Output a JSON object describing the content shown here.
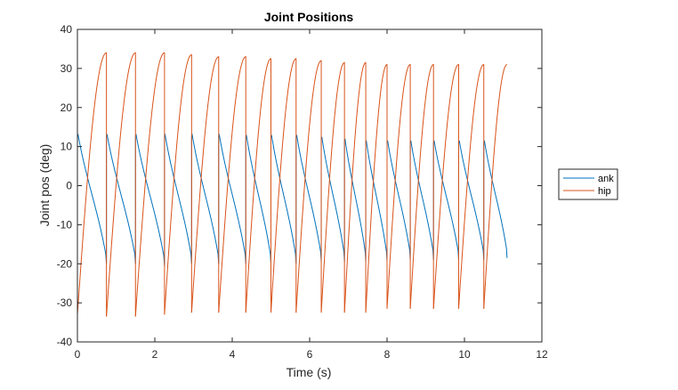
{
  "chart_data": {
    "type": "line",
    "title": "Joint Positions",
    "xlabel": "Time (s)",
    "ylabel": "Joint pos (deg)",
    "xlim": [
      0,
      12
    ],
    "ylim": [
      -40,
      40
    ],
    "xticks": [
      "0",
      "2",
      "4",
      "6",
      "8",
      "10",
      "12"
    ],
    "yticks": [
      "-40",
      "-30",
      "-20",
      "-10",
      "0",
      "10",
      "20",
      "30",
      "40"
    ],
    "grid": false,
    "legend_position": "outside-right",
    "series": [
      {
        "name": "ank",
        "color": "#0072BD",
        "cycles": [
          {
            "t_start": 0.0,
            "t_end": 0.75,
            "y_start": 12.5,
            "y_end": -20
          },
          {
            "t_start": 0.75,
            "t_end": 1.5,
            "y_start": 12.5,
            "y_end": -20
          },
          {
            "t_start": 1.5,
            "t_end": 2.25,
            "y_start": 12.5,
            "y_end": -20.5
          },
          {
            "t_start": 2.25,
            "t_end": 2.95,
            "y_start": 12.5,
            "y_end": -20
          },
          {
            "t_start": 2.95,
            "t_end": 3.65,
            "y_start": 12.5,
            "y_end": -20
          },
          {
            "t_start": 3.65,
            "t_end": 4.35,
            "y_start": 12.5,
            "y_end": -20
          },
          {
            "t_start": 4.35,
            "t_end": 5.0,
            "y_start": 12.5,
            "y_end": -20
          },
          {
            "t_start": 5.0,
            "t_end": 5.65,
            "y_start": 12.5,
            "y_end": -20
          },
          {
            "t_start": 5.65,
            "t_end": 6.3,
            "y_start": 12.5,
            "y_end": -19.5
          },
          {
            "t_start": 6.3,
            "t_end": 6.9,
            "y_start": 12,
            "y_end": -19.5
          },
          {
            "t_start": 6.9,
            "t_end": 7.45,
            "y_start": 11.5,
            "y_end": -19.5
          },
          {
            "t_start": 7.45,
            "t_end": 8.0,
            "y_start": 11,
            "y_end": -19.5
          },
          {
            "t_start": 8.0,
            "t_end": 8.6,
            "y_start": 11,
            "y_end": -19
          },
          {
            "t_start": 8.6,
            "t_end": 9.2,
            "y_start": 11,
            "y_end": -19
          },
          {
            "t_start": 9.2,
            "t_end": 9.85,
            "y_start": 11,
            "y_end": -19
          },
          {
            "t_start": 9.85,
            "t_end": 10.5,
            "y_start": 11,
            "y_end": -19
          },
          {
            "t_start": 10.5,
            "t_end": 11.1,
            "y_start": 11,
            "y_end": -18.5
          }
        ]
      },
      {
        "name": "hip",
        "color": "#D95319",
        "cycles": [
          {
            "t_start": 0.0,
            "t_end": 0.75,
            "y_start": -33,
            "y_end": 34
          },
          {
            "t_start": 0.75,
            "t_end": 1.5,
            "y_start": -33.5,
            "y_end": 34
          },
          {
            "t_start": 1.5,
            "t_end": 2.25,
            "y_start": -33.5,
            "y_end": 34
          },
          {
            "t_start": 2.25,
            "t_end": 2.95,
            "y_start": -33,
            "y_end": 33.5
          },
          {
            "t_start": 2.95,
            "t_end": 3.65,
            "y_start": -32.5,
            "y_end": 33
          },
          {
            "t_start": 3.65,
            "t_end": 4.35,
            "y_start": -32.5,
            "y_end": 33
          },
          {
            "t_start": 4.35,
            "t_end": 5.0,
            "y_start": -32.5,
            "y_end": 32.5
          },
          {
            "t_start": 5.0,
            "t_end": 5.65,
            "y_start": -32.5,
            "y_end": 32.5
          },
          {
            "t_start": 5.65,
            "t_end": 6.3,
            "y_start": -32.5,
            "y_end": 32
          },
          {
            "t_start": 6.3,
            "t_end": 6.9,
            "y_start": -32.5,
            "y_end": 31.5
          },
          {
            "t_start": 6.9,
            "t_end": 7.45,
            "y_start": -32.5,
            "y_end": 31.5
          },
          {
            "t_start": 7.45,
            "t_end": 8.0,
            "y_start": -32.5,
            "y_end": 31
          },
          {
            "t_start": 8.0,
            "t_end": 8.6,
            "y_start": -31.5,
            "y_end": 31
          },
          {
            "t_start": 8.6,
            "t_end": 9.2,
            "y_start": -31.5,
            "y_end": 31
          },
          {
            "t_start": 9.2,
            "t_end": 9.85,
            "y_start": -31.5,
            "y_end": 31
          },
          {
            "t_start": 9.85,
            "t_end": 10.5,
            "y_start": -31.5,
            "y_end": 31
          },
          {
            "t_start": 10.5,
            "t_end": 11.1,
            "y_start": -31.5,
            "y_end": 31
          }
        ]
      }
    ]
  }
}
